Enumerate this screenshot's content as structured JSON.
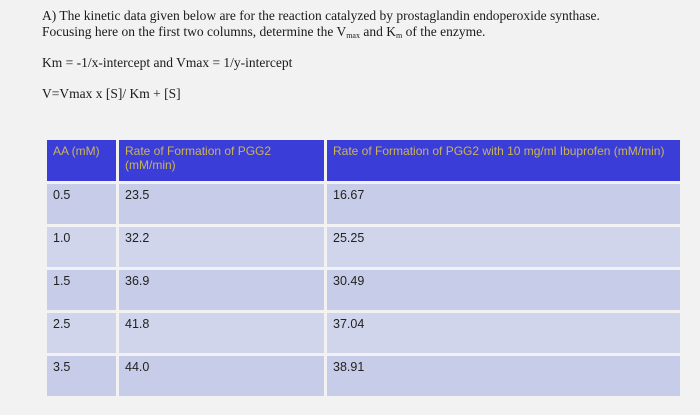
{
  "problem": {
    "line1": "A) The kinetic data given below are for the reaction catalyzed by prostaglandin endoperoxide synthase.",
    "line2_pre": "Focusing here on the first two columns, determine the V",
    "vmax_sub": "max",
    "line2_mid": " and K",
    "km_sub": "m",
    "line2_post": " of the enzyme."
  },
  "formulas": {
    "f1": "Km = -1/x-intercept and Vmax = 1/y-intercept",
    "f2": "V=Vmax x [S]/ Km + [S]"
  },
  "table": {
    "headers": {
      "aa": "AA (mM)",
      "pgg2": "Rate of Formation of PGG2 (mM/min)",
      "ibuprofen": "Rate of Formation of PGG2 with 10 mg/ml Ibuprofen (mM/min)"
    },
    "rows": [
      {
        "aa": "0.5",
        "pgg2": "23.5",
        "ibuprofen": "16.67"
      },
      {
        "aa": "1.0",
        "pgg2": "32.2",
        "ibuprofen": "25.25"
      },
      {
        "aa": "1.5",
        "pgg2": "36.9",
        "ibuprofen": "30.49"
      },
      {
        "aa": "2.5",
        "pgg2": "41.8",
        "ibuprofen": "37.04"
      },
      {
        "aa": "3.5",
        "pgg2": "44.0",
        "ibuprofen": "38.91"
      }
    ]
  }
}
